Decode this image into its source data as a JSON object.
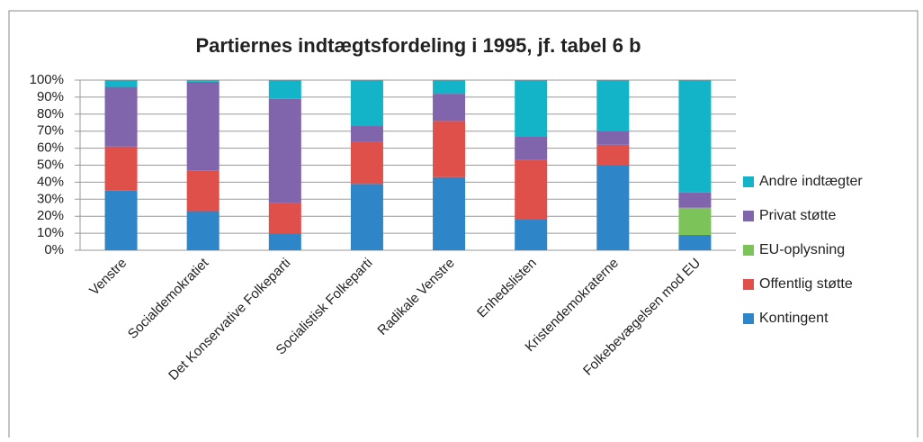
{
  "chart_data": {
    "type": "stacked_bar",
    "title": "Partiernes indtægtsfordeling i 1995, jf. tabel 6 b",
    "categories": [
      "Venstre",
      "Socialdemokratiet",
      "Det Konservative Folkeparti",
      "Socialistisk Folkeparti",
      "Radikale Venstre",
      "Enhedslisten",
      "Kristendemokraterne",
      "Folkebevægelsen mod EU"
    ],
    "series": [
      {
        "name": "Kontingent",
        "color": "#2e86c8",
        "values": [
          35,
          23,
          10,
          39,
          43,
          18,
          50,
          9
        ]
      },
      {
        "name": "Offentlig støtte",
        "color": "#e0504a",
        "values": [
          26,
          24,
          18,
          25,
          33,
          35,
          12,
          0
        ]
      },
      {
        "name": "EU-oplysning",
        "color": "#7cc35a",
        "values": [
          0,
          0,
          0,
          0,
          0,
          0,
          0,
          16
        ]
      },
      {
        "name": "Privat støtte",
        "color": "#8064ac",
        "values": [
          35,
          52,
          61,
          9,
          16,
          14,
          8,
          9
        ]
      },
      {
        "name": "Andre indtægter",
        "color": "#13b4c8",
        "values": [
          4,
          1,
          11,
          27,
          8,
          33,
          30,
          66
        ]
      }
    ],
    "ylim": [
      0,
      100
    ],
    "yticks": [
      {
        "value": 0,
        "label": "0%"
      },
      {
        "value": 10,
        "label": "10%"
      },
      {
        "value": 20,
        "label": "20%"
      },
      {
        "value": 30,
        "label": "30%"
      },
      {
        "value": 40,
        "label": "40%"
      },
      {
        "value": 50,
        "label": "50%"
      },
      {
        "value": 60,
        "label": "60%"
      },
      {
        "value": 70,
        "label": "70%"
      },
      {
        "value": 80,
        "label": "80%"
      },
      {
        "value": 90,
        "label": "90%"
      },
      {
        "value": 100,
        "label": "100%"
      }
    ],
    "grid": true,
    "legend": "right"
  }
}
